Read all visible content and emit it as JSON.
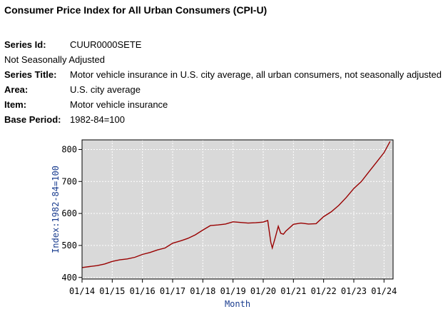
{
  "page": {
    "title": "Consumer Price Index for All Urban Consumers (CPI-U)",
    "series_id_label": "Series Id:",
    "series_id": "CUUR0000SETE",
    "seasonal": "Not Seasonally Adjusted",
    "series_title_label": "Series Title:",
    "series_title": "Motor vehicle insurance in U.S. city average, all urban consumers, not seasonally adjusted",
    "area_label": "Area:",
    "area": "U.S. city average",
    "item_label": "Item:",
    "item": "Motor vehicle insurance",
    "base_period_label": "Base Period:",
    "base_period": "1982-84=100"
  },
  "chart_data": {
    "type": "line",
    "title": "",
    "xlabel": "Month",
    "ylabel": "Index:1982-84=100",
    "xlim": [
      2014.0,
      2024.3
    ],
    "ylim": [
      395,
      830
    ],
    "x_ticks": [
      2014,
      2015,
      2016,
      2017,
      2018,
      2019,
      2020,
      2021,
      2022,
      2023,
      2024
    ],
    "x_tick_labels": [
      "01/14",
      "01/15",
      "01/16",
      "01/17",
      "01/18",
      "01/19",
      "01/20",
      "01/21",
      "01/22",
      "01/23",
      "01/24"
    ],
    "y_ticks": [
      400,
      500,
      600,
      700,
      800
    ],
    "y_tick_labels": [
      "400",
      "500",
      "600",
      "700",
      "800"
    ],
    "grid": true,
    "background": "#d9d9d9",
    "line_color": "#990000",
    "series": [
      {
        "name": "CUUR0000SETE",
        "x": [
          2014.0,
          2014.25,
          2014.5,
          2014.75,
          2015.0,
          2015.25,
          2015.5,
          2015.75,
          2016.0,
          2016.25,
          2016.5,
          2016.75,
          2017.0,
          2017.25,
          2017.5,
          2017.75,
          2018.0,
          2018.25,
          2018.5,
          2018.75,
          2019.0,
          2019.25,
          2019.5,
          2019.75,
          2020.0,
          2020.15,
          2020.25,
          2020.3,
          2020.4,
          2020.5,
          2020.58,
          2020.67,
          2020.75,
          2021.0,
          2021.25,
          2021.5,
          2021.75,
          2022.0,
          2022.25,
          2022.5,
          2022.75,
          2023.0,
          2023.25,
          2023.5,
          2023.75,
          2024.0,
          2024.2
        ],
        "values": [
          431,
          434,
          437,
          442,
          450,
          455,
          458,
          463,
          472,
          478,
          486,
          492,
          507,
          514,
          522,
          533,
          548,
          562,
          564,
          567,
          574,
          572,
          570,
          571,
          573,
          578,
          510,
          492,
          525,
          560,
          538,
          535,
          545,
          566,
          570,
          567,
          568,
          590,
          605,
          625,
          650,
          678,
          700,
          730,
          760,
          790,
          825
        ]
      }
    ]
  }
}
